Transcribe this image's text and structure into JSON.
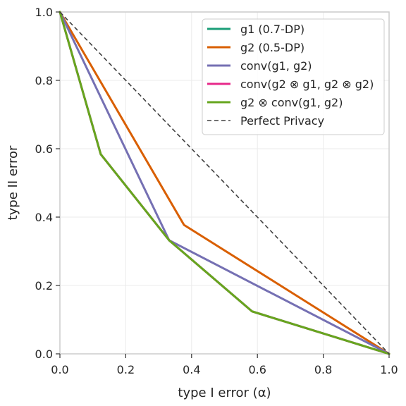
{
  "chart_data": {
    "type": "line",
    "xlabel": "type I error (α)",
    "ylabel": "type II error",
    "xlim": [
      0,
      1
    ],
    "ylim": [
      0,
      1
    ],
    "xticks": [
      "0.0",
      "0.2",
      "0.4",
      "0.6",
      "0.8",
      "1.0"
    ],
    "yticks": [
      "0.0",
      "0.2",
      "0.4",
      "0.6",
      "0.8",
      "1.0"
    ],
    "grid": true,
    "legend_position": "top-right",
    "series": [
      {
        "name": "g1 (0.7-DP)",
        "color": "#1b9e77",
        "dash": false,
        "x": [
          0,
          0.124,
          0.332,
          0.584,
          1
        ],
        "y": [
          1,
          0.584,
          0.332,
          0.124,
          0
        ]
      },
      {
        "name": "g2 (0.5-DP)",
        "color": "#d95f02",
        "dash": false,
        "x": [
          0,
          0.377,
          1
        ],
        "y": [
          1,
          0.377,
          0
        ]
      },
      {
        "name": "conv(g1, g2)",
        "color": "#7570b3",
        "dash": false,
        "x": [
          0,
          0.332,
          1
        ],
        "y": [
          1,
          0.332,
          0
        ]
      },
      {
        "name": "conv(g2 ⊗ g1, g2 ⊗ g2)",
        "color": "#e7298a",
        "dash": false,
        "x": [
          0,
          0.124,
          0.332,
          0.584,
          1
        ],
        "y": [
          1,
          0.584,
          0.332,
          0.124,
          0
        ]
      },
      {
        "name": "g2 ⊗ conv(g1, g2)",
        "color": "#66a61e",
        "dash": false,
        "x": [
          0,
          0.124,
          0.332,
          0.584,
          1
        ],
        "y": [
          1,
          0.584,
          0.332,
          0.124,
          0
        ]
      },
      {
        "name": "Perfect Privacy",
        "color": "#404040",
        "dash": true,
        "x": [
          0,
          1
        ],
        "y": [
          1,
          0
        ]
      }
    ]
  }
}
